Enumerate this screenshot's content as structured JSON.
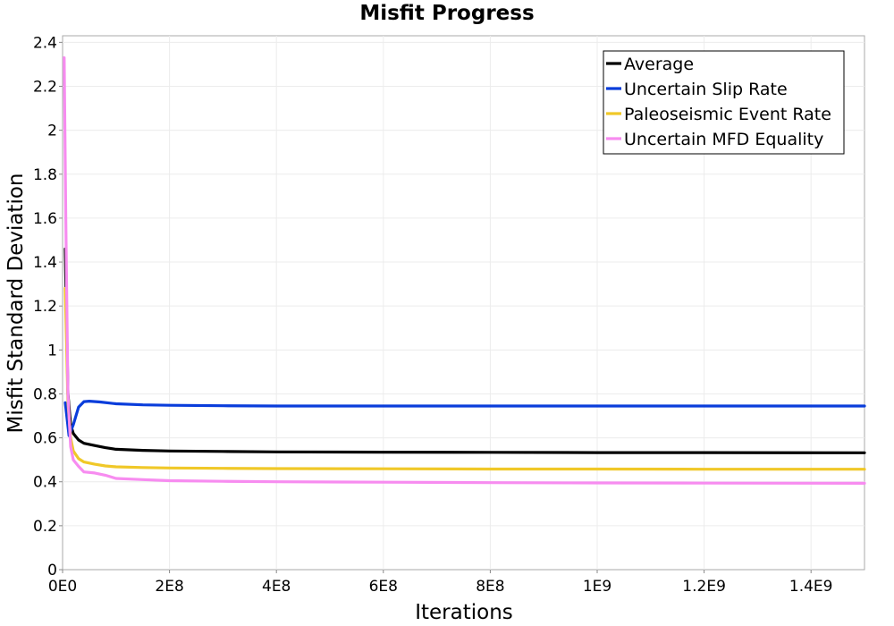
{
  "chart_data": {
    "type": "line",
    "title": "Misfit Progress",
    "xlabel": "Iterations",
    "ylabel": "Misfit Standard Deviation",
    "xlim": [
      0,
      1500000000
    ],
    "ylim": [
      0,
      2.43
    ],
    "x_ticks": [
      {
        "value": 0,
        "label": "0E0"
      },
      {
        "value": 200000000,
        "label": "2E8"
      },
      {
        "value": 400000000,
        "label": "4E8"
      },
      {
        "value": 600000000,
        "label": "6E8"
      },
      {
        "value": 800000000,
        "label": "8E8"
      },
      {
        "value": 1000000000,
        "label": "1E9"
      },
      {
        "value": 1200000000,
        "label": "1.2E9"
      },
      {
        "value": 1400000000,
        "label": "1.4E9"
      }
    ],
    "y_ticks": [
      {
        "value": 0,
        "label": "0"
      },
      {
        "value": 0.2,
        "label": "0.2"
      },
      {
        "value": 0.4,
        "label": "0.4"
      },
      {
        "value": 0.6,
        "label": "0.6"
      },
      {
        "value": 0.8,
        "label": "0.8"
      },
      {
        "value": 1.0,
        "label": "1"
      },
      {
        "value": 1.2,
        "label": "1.2"
      },
      {
        "value": 1.4,
        "label": "1.4"
      },
      {
        "value": 1.6,
        "label": "1.6"
      },
      {
        "value": 1.8,
        "label": "1.8"
      },
      {
        "value": 2.0,
        "label": "2"
      },
      {
        "value": 2.2,
        "label": "2.2"
      },
      {
        "value": 2.4,
        "label": "2.4"
      }
    ],
    "grid": true,
    "legend_position": "top-right",
    "series": [
      {
        "name": "Average",
        "color": "#000000",
        "x": [
          5000000,
          10000000,
          15000000,
          20000000,
          30000000,
          40000000,
          60000000,
          80000000,
          100000000,
          150000000,
          200000000,
          300000000,
          400000000,
          600000000,
          800000000,
          1000000000,
          1200000000,
          1500000000
        ],
        "y": [
          1.46,
          0.8,
          0.66,
          0.62,
          0.59,
          0.575,
          0.565,
          0.555,
          0.548,
          0.543,
          0.54,
          0.538,
          0.536,
          0.535,
          0.534,
          0.533,
          0.533,
          0.532
        ]
      },
      {
        "name": "Uncertain Slip Rate",
        "color": "#0a3ddb",
        "x": [
          5000000,
          12000000,
          20000000,
          30000000,
          40000000,
          50000000,
          70000000,
          100000000,
          150000000,
          200000000,
          300000000,
          400000000,
          600000000,
          800000000,
          1000000000,
          1200000000,
          1500000000
        ],
        "y": [
          0.76,
          0.61,
          0.66,
          0.74,
          0.765,
          0.767,
          0.763,
          0.755,
          0.75,
          0.748,
          0.746,
          0.745,
          0.745,
          0.745,
          0.745,
          0.745,
          0.745
        ]
      },
      {
        "name": "Paleoseismic Event Rate",
        "color": "#f0c828",
        "x": [
          5000000,
          10000000,
          15000000,
          20000000,
          30000000,
          40000000,
          60000000,
          80000000,
          100000000,
          150000000,
          200000000,
          300000000,
          400000000,
          600000000,
          800000000,
          1000000000,
          1200000000,
          1500000000
        ],
        "y": [
          1.28,
          0.76,
          0.6,
          0.54,
          0.505,
          0.49,
          0.48,
          0.472,
          0.468,
          0.465,
          0.463,
          0.461,
          0.46,
          0.459,
          0.458,
          0.458,
          0.457,
          0.457
        ]
      },
      {
        "name": "Uncertain MFD Equality",
        "color": "#f78cf0",
        "x": [
          3000000,
          6000000,
          10000000,
          15000000,
          20000000,
          30000000,
          40000000,
          60000000,
          80000000,
          100000000,
          150000000,
          200000000,
          300000000,
          400000000,
          600000000,
          800000000,
          1000000000,
          1200000000,
          1500000000
        ],
        "y": [
          2.33,
          1.6,
          0.8,
          0.56,
          0.5,
          0.47,
          0.445,
          0.44,
          0.43,
          0.415,
          0.41,
          0.405,
          0.402,
          0.4,
          0.398,
          0.396,
          0.395,
          0.394,
          0.393
        ]
      }
    ]
  }
}
